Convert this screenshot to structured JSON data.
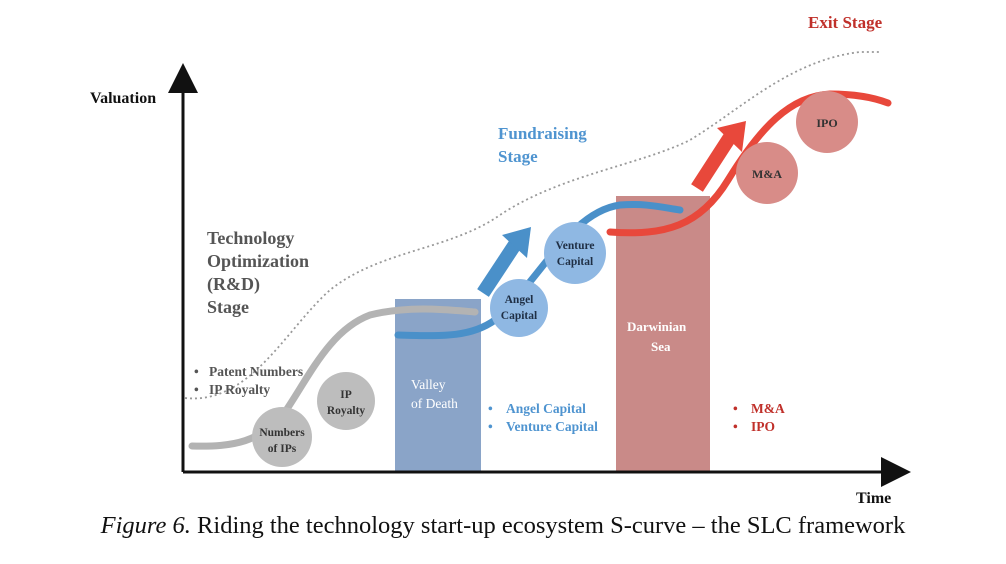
{
  "axes": {
    "y_label": "Valuation",
    "x_label": "Time"
  },
  "stages": {
    "rnd": [
      "Technology",
      "Optimization",
      "(R&D)",
      "Stage"
    ],
    "fundraising": [
      "Fundraising",
      "Stage"
    ],
    "exit": "Exit Stage"
  },
  "bullets": {
    "rnd": [
      "Patent Numbers",
      "IP Royalty"
    ],
    "fundraising": [
      "Angel Capital",
      "Venture Capital"
    ],
    "exit": [
      "M&A",
      "IPO"
    ]
  },
  "zones": {
    "valley": [
      "Valley",
      "of Death"
    ],
    "darwinian": [
      "Darwinian",
      "Sea"
    ]
  },
  "circles": {
    "numbers_of_ips": [
      "Numbers",
      "of IPs"
    ],
    "ip_royalty": [
      "IP",
      "Royalty"
    ],
    "angel_capital": [
      "Angel",
      "Capital"
    ],
    "venture_capital": [
      "Venture",
      "Capital"
    ],
    "ma": "M&A",
    "ipo": "IPO"
  },
  "caption": {
    "figure": "Figure 6.",
    "text": " Riding the technology start-up ecosystem S-curve – the SLC framework"
  },
  "colors": {
    "gray": "#b3b3b3",
    "blue": "#4a90c9",
    "red": "#e8483b",
    "valley": "#8aa4c8",
    "darwinian": "#c98a88",
    "exit_text": "#c0302a",
    "blue_text": "#4f94d0"
  }
}
